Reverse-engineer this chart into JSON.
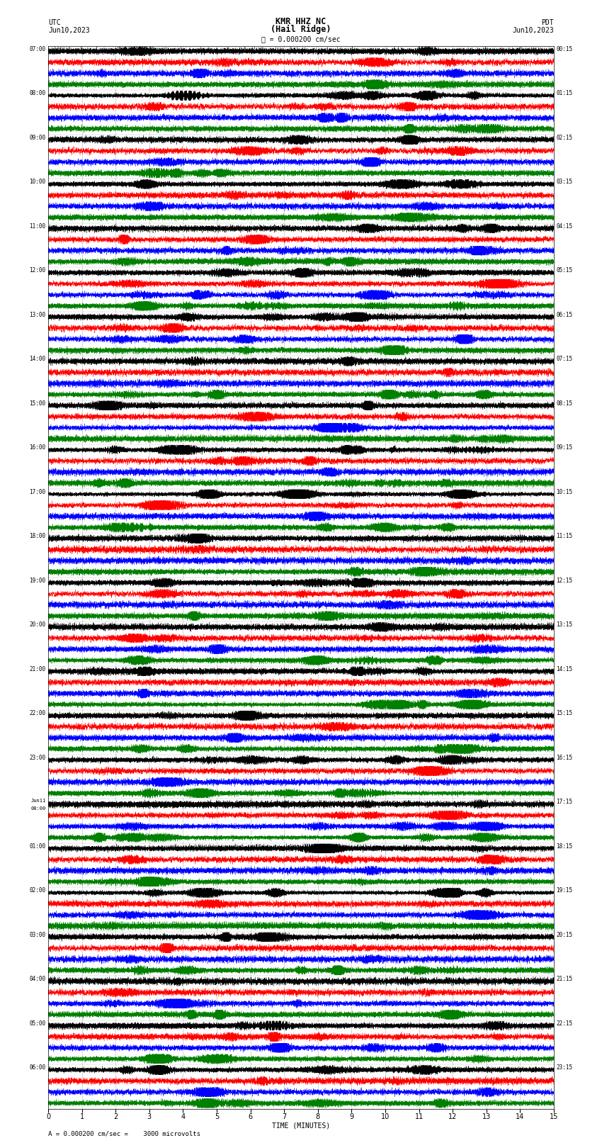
{
  "title_line1": "KMR HHZ NC",
  "title_line2": "(Hail Ridge)",
  "scale_text": "= 0.000200 cm/sec",
  "utc_label": "UTC",
  "date_left": "Jun10,2023",
  "date_right": "Jun10,2023",
  "pdt_label": "PDT",
  "bottom_label": "A = 0.000200 cm/sec =    3000 microvolts",
  "xlabel": "TIME (MINUTES)",
  "colors": [
    "black",
    "red",
    "blue",
    "green"
  ],
  "fig_width": 8.5,
  "fig_height": 16.13,
  "left_times_utc": [
    "07:00",
    "08:00",
    "09:00",
    "10:00",
    "11:00",
    "12:00",
    "13:00",
    "14:00",
    "15:00",
    "16:00",
    "17:00",
    "18:00",
    "19:00",
    "20:00",
    "21:00",
    "22:00",
    "23:00",
    "Jun11\n00:00",
    "01:00",
    "02:00",
    "03:00",
    "04:00",
    "05:00",
    "06:00"
  ],
  "right_times_pdt": [
    "00:15",
    "01:15",
    "02:15",
    "03:15",
    "04:15",
    "05:15",
    "06:15",
    "07:15",
    "08:15",
    "09:15",
    "10:15",
    "11:15",
    "12:15",
    "13:15",
    "14:15",
    "15:15",
    "16:15",
    "17:15",
    "18:15",
    "19:15",
    "20:15",
    "21:15",
    "22:15",
    "23:15"
  ],
  "n_rows": 24,
  "n_traces_per_row": 4,
  "minutes": 15,
  "bg_color": "white",
  "grid_color": "#888888",
  "text_color": "black"
}
